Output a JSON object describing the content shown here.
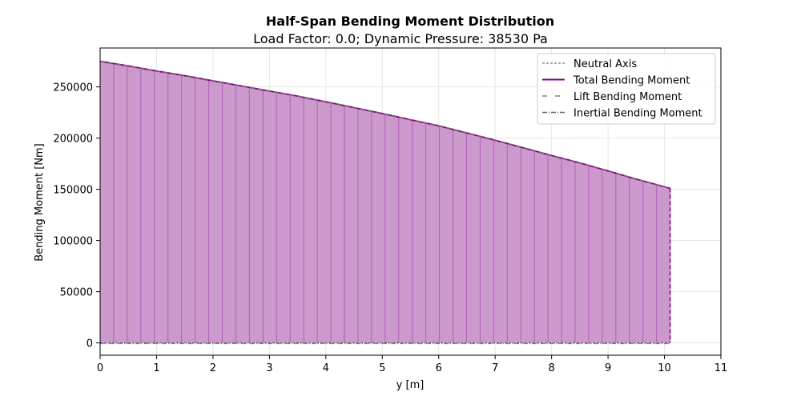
{
  "chart_data": {
    "type": "area",
    "title": "Half-Span Bending Moment Distribution",
    "subtitle": "Load Factor: 0.0; Dynamic Pressure: 38530 Pa",
    "xlabel": "y [m]",
    "ylabel": "Bending Moment [Nm]",
    "xlim": [
      0,
      11
    ],
    "ylim": [
      -12000,
      288000
    ],
    "xticks": [
      0,
      1,
      2,
      3,
      4,
      5,
      6,
      7,
      8,
      9,
      10,
      11
    ],
    "yticks": [
      0,
      50000,
      100000,
      150000,
      200000,
      250000
    ],
    "grid": true,
    "legend_position": "top-right",
    "legend": [
      {
        "label": "Neutral Axis",
        "style": "dashed-thin",
        "color": "#555555"
      },
      {
        "label": "Total Bending Moment",
        "style": "solid",
        "color": "#800080"
      },
      {
        "label": "Lift Bending Moment",
        "style": "dashed-sparse",
        "color": "#808080"
      },
      {
        "label": "Inertial Bending Moment",
        "style": "dashdot",
        "color": "#666666"
      }
    ],
    "span_end": 10.1,
    "total_moment_curve": {
      "y": [
        0,
        0.5,
        1,
        1.5,
        2,
        2.5,
        3,
        3.5,
        4,
        4.5,
        5,
        5.5,
        6,
        6.5,
        7,
        7.5,
        8,
        8.5,
        9,
        9.5,
        10,
        10.1
      ],
      "moment": [
        275000,
        270500,
        265500,
        261000,
        256000,
        251000,
        246000,
        241000,
        235500,
        229800,
        224000,
        218000,
        212000,
        205000,
        198000,
        190500,
        183000,
        175800,
        168000,
        160000,
        152500,
        151000
      ]
    },
    "fill_color": "#cc99cc",
    "line_color": "#800080"
  }
}
